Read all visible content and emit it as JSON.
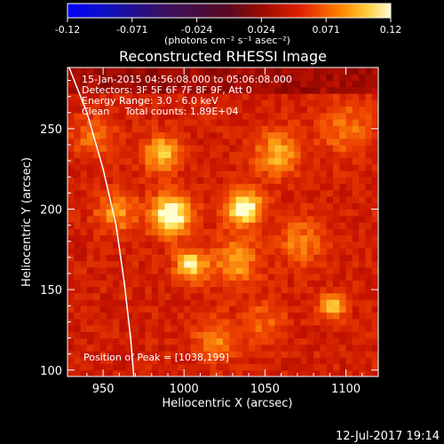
{
  "chart_data": {
    "type": "heatmap",
    "title": "Reconstructed RHESSI Image",
    "xlabel": "Heliocentric X (arcsec)",
    "ylabel": "Heliocentric Y (arcsec)",
    "xlim": [
      928,
      1120
    ],
    "ylim": [
      96,
      288
    ],
    "xticks": [
      950,
      1000,
      1050,
      1100
    ],
    "yticks": [
      100,
      150,
      200,
      250
    ],
    "colorbar": {
      "ticks": [
        "-0.12",
        "-0.071",
        "-0.024",
        "0.024",
        "0.071",
        "0.12"
      ],
      "unit": "(photons cm⁻² s⁻¹ asec⁻²)",
      "range": [
        -0.12,
        0.12
      ]
    },
    "info_lines": [
      "15-Jan-2015 04:56:08.000 to 05:06:08.000",
      "Detectors: 3F 5F 6F 7F 8F 9F, Att 0",
      "Energy Range: 3.0 - 6.0 keV",
      "Clean     Total counts: 1.89E+04"
    ],
    "peak_label": "Position of Peak = [1038,199]",
    "peak_position": [
      1038,
      199
    ],
    "sources": [
      {
        "x": 992,
        "y": 197,
        "amp": 0.12,
        "sigma": 9
      },
      {
        "x": 1037,
        "y": 201,
        "amp": 0.12,
        "sigma": 8
      },
      {
        "x": 1004,
        "y": 165,
        "amp": 0.095,
        "sigma": 7
      },
      {
        "x": 986,
        "y": 235,
        "amp": 0.08,
        "sigma": 8
      },
      {
        "x": 1058,
        "y": 235,
        "amp": 0.07,
        "sigma": 10
      },
      {
        "x": 958,
        "y": 198,
        "amp": 0.06,
        "sigma": 9
      },
      {
        "x": 1032,
        "y": 168,
        "amp": 0.065,
        "sigma": 10
      },
      {
        "x": 1092,
        "y": 140,
        "amp": 0.075,
        "sigma": 6
      },
      {
        "x": 1072,
        "y": 180,
        "amp": 0.05,
        "sigma": 10
      },
      {
        "x": 1020,
        "y": 120,
        "amp": 0.05,
        "sigma": 10
      },
      {
        "x": 1100,
        "y": 250,
        "amp": 0.045,
        "sigma": 12
      },
      {
        "x": 945,
        "y": 245,
        "amp": 0.05,
        "sigma": 9
      },
      {
        "x": 1050,
        "y": 130,
        "amp": 0.04,
        "sigma": 9
      }
    ],
    "limb_curve": [
      [
        929,
        288
      ],
      [
        940,
        260
      ],
      [
        950,
        225
      ],
      [
        958,
        190
      ],
      [
        963,
        155
      ],
      [
        967,
        120
      ],
      [
        969,
        96
      ]
    ]
  },
  "footer_date": "12-Jul-2017 19:14",
  "colors": {
    "background": "#000000",
    "text": "#ffffff",
    "limb": "#ffffff"
  }
}
